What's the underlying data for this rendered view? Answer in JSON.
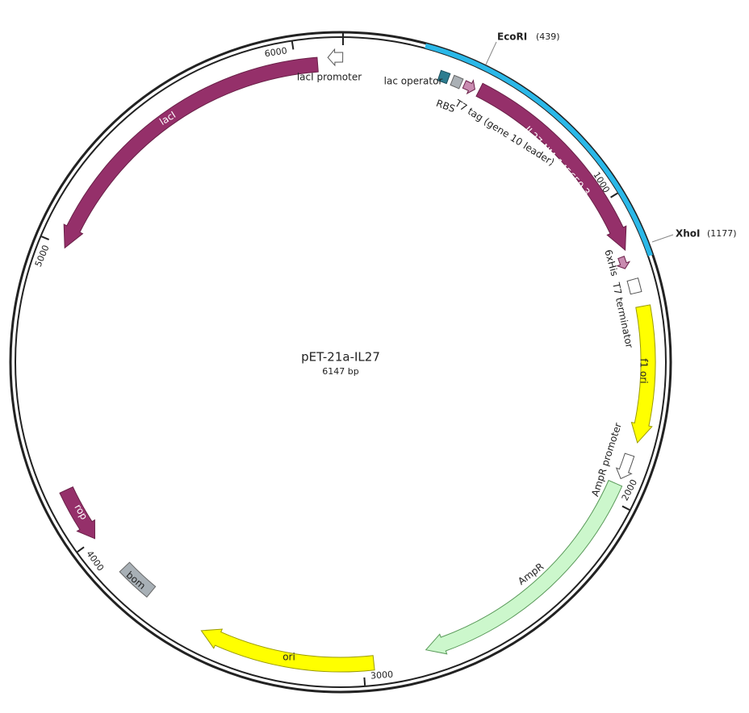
{
  "map": {
    "title": "pET-21a-IL27",
    "size": "6147 bp"
  },
  "sites": [
    {
      "name": "EcoRI",
      "position": "(439)"
    },
    {
      "name": "XhoI",
      "position": "(1177)"
    }
  ],
  "ticks": [
    "1000",
    "2000",
    "3000",
    "4000",
    "5000",
    "6000"
  ],
  "features": [
    {
      "label": "lacI promoter"
    },
    {
      "label": "lacI"
    },
    {
      "label": "lac operator"
    },
    {
      "label": "RBS"
    },
    {
      "label": "T7 tag (gene 10 leader)"
    },
    {
      "label": "IL27-NM_145659.3"
    },
    {
      "label": "6xHis"
    },
    {
      "label": "T7 terminator"
    },
    {
      "label": "f1 ori"
    },
    {
      "label": "AmpR promoter"
    },
    {
      "label": "AmpR"
    },
    {
      "label": "ori"
    },
    {
      "label": "bom"
    },
    {
      "label": "rop"
    }
  ]
}
